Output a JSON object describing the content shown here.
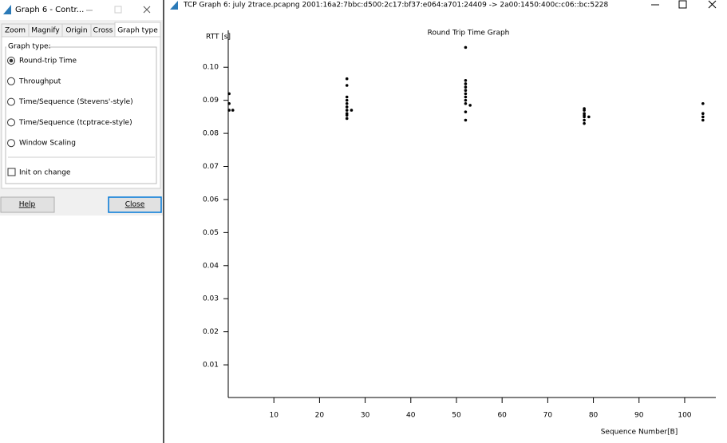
{
  "dialog": {
    "title": "Graph 6 - Contr...",
    "tabs": [
      "Zoom",
      "Magnify",
      "Origin",
      "Cross",
      "Graph type"
    ],
    "group_label": "Graph type:",
    "options": [
      "Round-trip Time",
      "Throughput",
      "Time/Sequence (Stevens'-style)",
      "Time/Sequence (tcptrace-style)",
      "Window Scaling"
    ],
    "checkbox": "Init on change",
    "buttons": [
      "Help",
      "Close"
    ]
  },
  "window": {
    "title": "TCP Graph 6: july 2trace.pcapng 2001:16a2:7bbc:d500:2c17:bf37:e064:a701:24409 -> 2a00:1450:400c:c06::bc:5228"
  },
  "chart_data": {
    "type": "scatter",
    "title": "Round Trip Time Graph",
    "y_label": "RTT [s]",
    "x_label": "Sequence Number[B]",
    "xlim": [
      0,
      107
    ],
    "xticks": [
      10,
      20,
      30,
      40,
      50,
      60,
      70,
      80,
      90,
      100
    ],
    "ylim": [
      0,
      0.11
    ],
    "yticks": [
      0.01,
      0.02,
      0.03,
      0.04,
      0.05,
      0.06,
      0.07,
      0.08,
      0.09,
      {
        "value": 0.1,
        "label": "0.10"
      }
    ],
    "series": [
      {
        "color": "#000000",
        "x": [
          0.2,
          0.2,
          0.2,
          1,
          26,
          26,
          26,
          26,
          26,
          26,
          26,
          26,
          26,
          26,
          27,
          52,
          52,
          52,
          52,
          52,
          52,
          52,
          52,
          52,
          52,
          52,
          53,
          78,
          78,
          78,
          78,
          78,
          78,
          78,
          79,
          104,
          104,
          104,
          104
        ],
        "values": [
          0.092,
          0.089,
          0.087,
          0.087,
          0.0965,
          0.0945,
          0.091,
          0.09,
          0.089,
          0.088,
          0.087,
          0.086,
          0.0855,
          0.0845,
          0.087,
          0.106,
          0.096,
          0.095,
          0.094,
          0.093,
          0.092,
          0.091,
          0.09,
          0.089,
          0.0865,
          0.084,
          0.0885,
          0.0875,
          0.087,
          0.086,
          0.0855,
          0.085,
          0.084,
          0.083,
          0.085,
          0.089,
          0.086,
          0.085,
          0.084
        ]
      }
    ]
  }
}
